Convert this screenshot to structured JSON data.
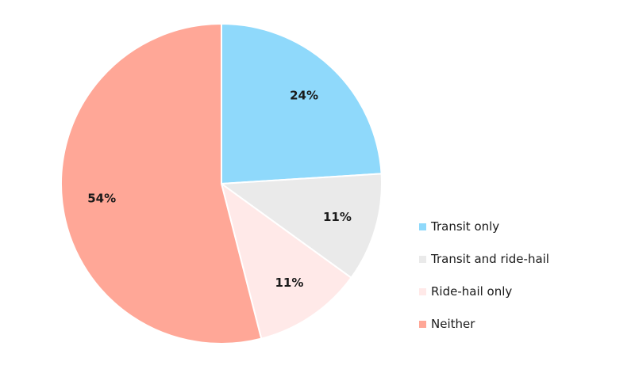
{
  "chart_data": {
    "type": "pie",
    "categories": [
      "Transit only",
      "Transit and ride-hail",
      "Ride-hail only",
      "Neither"
    ],
    "values": [
      24,
      11,
      11,
      54
    ],
    "labels": [
      "24%",
      "11%",
      "11%",
      "54%"
    ],
    "colors": [
      "#8fd9fb",
      "#eaeaea",
      "#ffe9e8",
      "#ffa797"
    ],
    "start_angle": "12 o'clock",
    "direction": "clockwise",
    "legend_position": "right"
  }
}
